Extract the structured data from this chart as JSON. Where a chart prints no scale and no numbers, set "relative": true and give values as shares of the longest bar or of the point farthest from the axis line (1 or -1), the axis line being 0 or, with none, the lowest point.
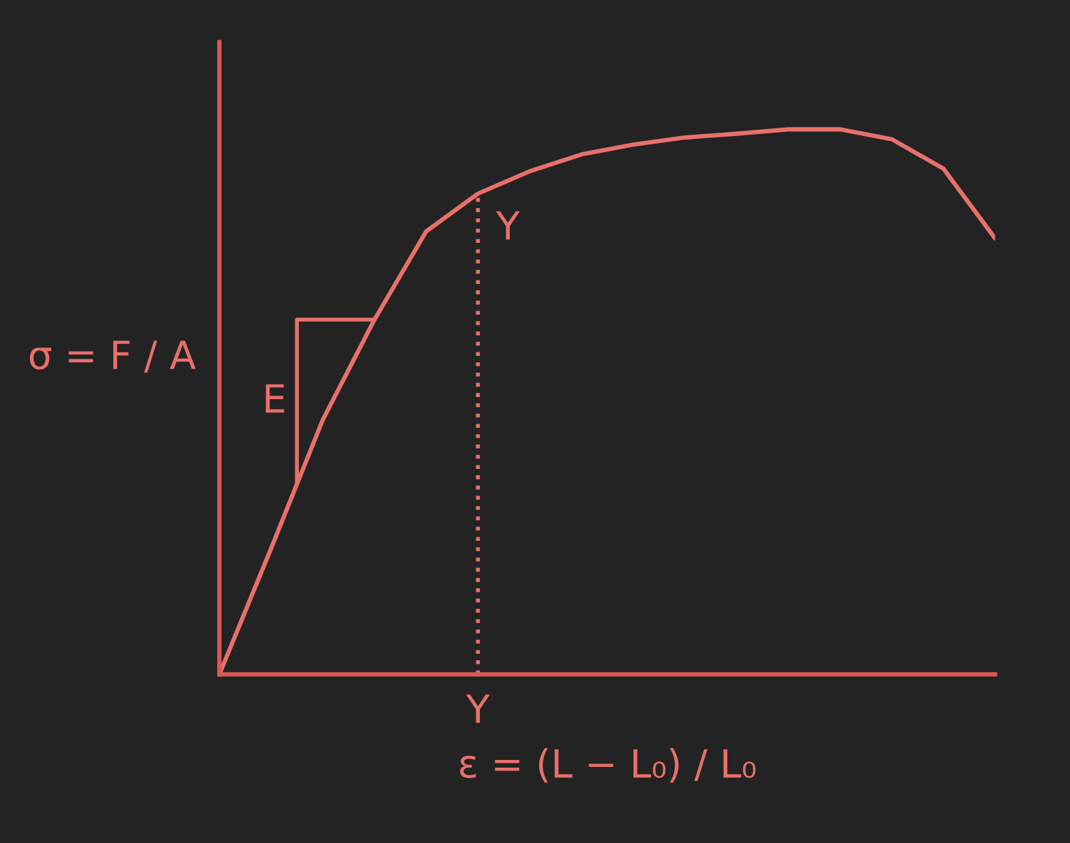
{
  "chart_data": {
    "type": "line",
    "relative": true,
    "categories": [
      null,
      null,
      null,
      null,
      null,
      null,
      null,
      null,
      null,
      null,
      null,
      null,
      null,
      null,
      null,
      null
    ],
    "series": [
      {
        "color": "#e8706a",
        "values": [
          0,
          0.231,
          0.467,
          0.651,
          0.813,
          0.882,
          0.923,
          0.954,
          0.972,
          0.985,
          0.992,
          1.0,
          1.0,
          0.982,
          0.928,
          0.8
        ]
      }
    ],
    "xlabel": "ε = (L − L₀) / L₀",
    "ylabel": "σ = F / A",
    "annotations": [
      "E",
      "Y",
      "Y"
    ]
  }
}
